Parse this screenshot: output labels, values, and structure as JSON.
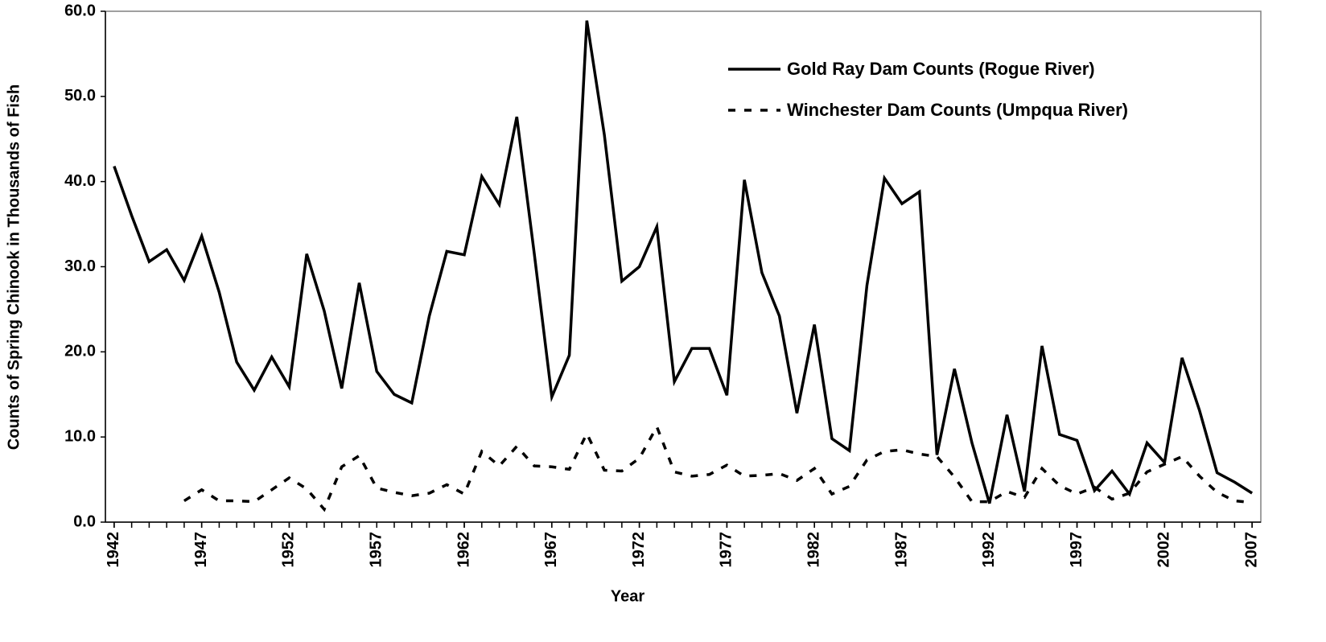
{
  "chart_data": {
    "type": "line",
    "x_label": "Year",
    "y_label": "Counts of Spring Chinook in Thousands of Fish",
    "x": [
      1942,
      1943,
      1944,
      1945,
      1946,
      1947,
      1948,
      1949,
      1950,
      1951,
      1952,
      1953,
      1954,
      1955,
      1956,
      1957,
      1958,
      1959,
      1960,
      1961,
      1962,
      1963,
      1964,
      1965,
      1966,
      1967,
      1968,
      1969,
      1970,
      1971,
      1972,
      1973,
      1974,
      1975,
      1976,
      1977,
      1978,
      1979,
      1980,
      1981,
      1982,
      1983,
      1984,
      1985,
      1986,
      1987,
      1988,
      1989,
      1990,
      1991,
      1992,
      1993,
      1994,
      1995,
      1996,
      1997,
      1998,
      1999,
      2000,
      2001,
      2002,
      2003,
      2004,
      2005,
      2006,
      2007
    ],
    "series": [
      {
        "name": "Gold Ray Dam Counts (Rogue River)",
        "color": "#000000",
        "line_style": "solid",
        "values": [
          41.8,
          36,
          30.6,
          32,
          28.4,
          33.6,
          27,
          18.8,
          15.5,
          19.4,
          15.9,
          31.5,
          24.8,
          15.7,
          28.1,
          17.7,
          15,
          14,
          24.2,
          31.8,
          31.4,
          40.6,
          37.3,
          47.6,
          31.5,
          14.7,
          19.6,
          58.9,
          45.5,
          28.3,
          30,
          34.7,
          16.5,
          20.4,
          20.4,
          14.9,
          40.2,
          29.3,
          24.2,
          12.8,
          23.2,
          9.8,
          8.4,
          27.8,
          40.4,
          37.4,
          38.8,
          7.9,
          18,
          9.3,
          2.2,
          12.6,
          3.6,
          20.7,
          10.3,
          9.6,
          3.7,
          6,
          3.3,
          9.3,
          7,
          19.3,
          13.1,
          5.8,
          4.7,
          3.4
        ]
      },
      {
        "name": "Winchester Dam Counts (Umpqua River)",
        "color": "#000000",
        "line_style": "dashed",
        "values": [
          null,
          null,
          null,
          null,
          2.5,
          3.8,
          2.5,
          2.5,
          2.4,
          3.8,
          5.2,
          3.9,
          1.5,
          6.5,
          7.8,
          4,
          3.5,
          3.1,
          3.4,
          4.4,
          3.3,
          8.3,
          6.6,
          8.9,
          6.6,
          6.5,
          6.2,
          10.4,
          6.1,
          6,
          7.5,
          11.2,
          5.9,
          5.4,
          5.6,
          6.7,
          5.4,
          5.5,
          5.7,
          4.9,
          6.3,
          3.3,
          4.2,
          7.3,
          8.3,
          8.5,
          8,
          7.7,
          5.3,
          2.4,
          2.4,
          3.6,
          2.9,
          6.3,
          4.3,
          3.3,
          4.1,
          2.7,
          3.4,
          5.9,
          6.8,
          7.7,
          5.4,
          3.5,
          2.5,
          2.3
        ]
      }
    ],
    "xlim": [
      1941.5,
      2007.5
    ],
    "xticks": [
      1942,
      1947,
      1952,
      1957,
      1962,
      1967,
      1972,
      1977,
      1982,
      1987,
      1992,
      1997,
      2002,
      2007
    ],
    "ylim": [
      0,
      60
    ],
    "yticks": [
      {
        "value": 0,
        "label": "0.0"
      },
      {
        "value": 10,
        "label": "10.0"
      },
      {
        "value": 20,
        "label": "20.0"
      },
      {
        "value": 30,
        "label": "30.0"
      },
      {
        "value": 40,
        "label": "40.0"
      },
      {
        "value": 50,
        "label": "50.0"
      },
      {
        "value": 60,
        "label": "60.0"
      }
    ],
    "grid": false,
    "legend": "upper right"
  }
}
